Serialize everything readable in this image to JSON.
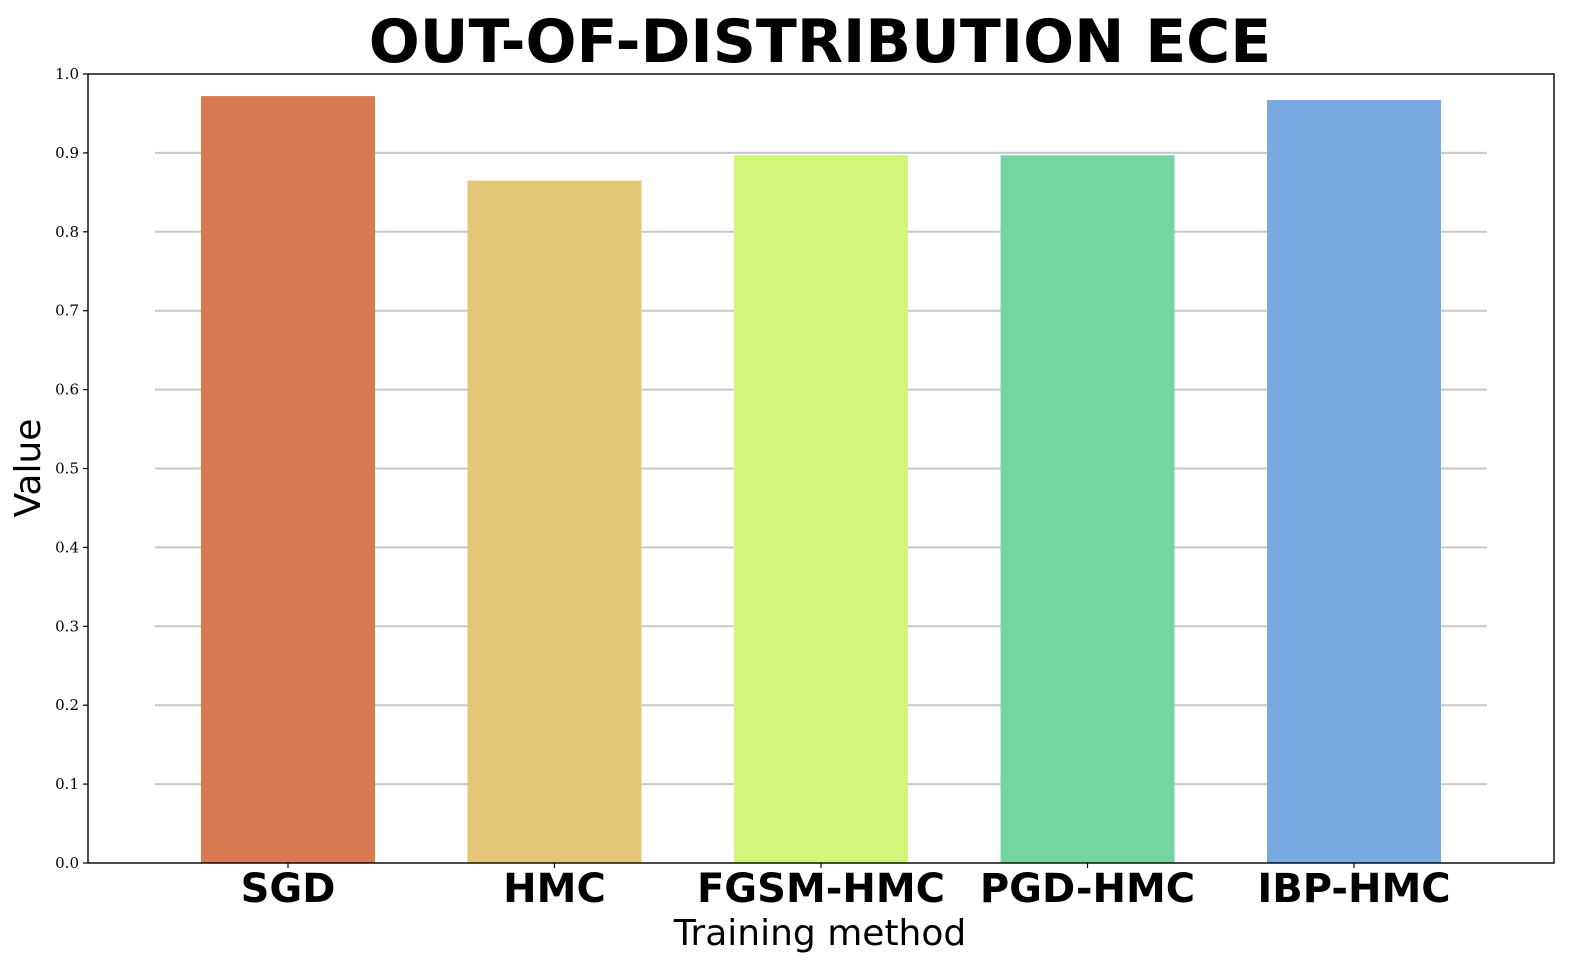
{
  "chart_data": {
    "type": "bar",
    "title": "OUT-OF-DISTRIBUTION ECE",
    "xlabel": "Training method",
    "ylabel": "Value",
    "categories": [
      "SGD",
      "HMC",
      "FGSM-HMC",
      "PGD-HMC",
      "IBP-HMC"
    ],
    "values": [
      0.972,
      0.865,
      0.897,
      0.897,
      0.967
    ],
    "colors": [
      "#d97b50",
      "#e3c677",
      "#d2f57a",
      "#74d4a2",
      "#78a9e3"
    ],
    "ylim": [
      0,
      1.0
    ],
    "yticks": [
      "0.0",
      "0.1",
      "0.2",
      "0.3",
      "0.4",
      "0.5",
      "0.6",
      "0.7",
      "0.8",
      "0.9",
      "1.0"
    ],
    "grid": "horizontal",
    "legend": "none"
  }
}
